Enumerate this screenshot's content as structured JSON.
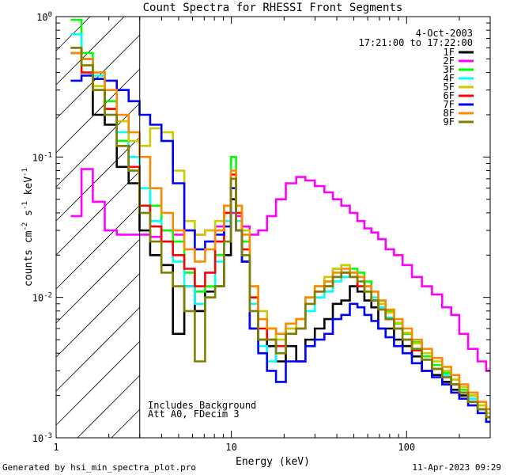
{
  "chart_data": {
    "type": "line",
    "title": "Count Spectra for RHESSI Front Segments",
    "xlabel": "Energy (keV)",
    "ylabel_parts": [
      "counts cm",
      "-2",
      " s",
      "-1",
      " keV",
      "-1"
    ],
    "xscale": "log",
    "yscale": "log",
    "xlim": [
      1,
      300
    ],
    "ylim": [
      0.001,
      1
    ],
    "x_ticks": [
      {
        "value": 1,
        "label": "1"
      },
      {
        "value": 10,
        "label": "10"
      },
      {
        "value": 100,
        "label": "100"
      }
    ],
    "y_ticks": [
      {
        "value": 1,
        "base": "10",
        "exp": "0"
      },
      {
        "value": 0.1,
        "base": "10",
        "exp": "-1"
      },
      {
        "value": 0.01,
        "base": "10",
        "exp": "-2"
      },
      {
        "value": 0.001,
        "base": "10",
        "exp": "-3"
      }
    ],
    "date": "4-Oct-2003",
    "time_range": "17:21:00 to 17:22:00",
    "excluded_region_xmax": 3,
    "annotations": [
      "Includes Background",
      "Att A0, FDecim 3"
    ],
    "series": [
      {
        "name": "1F",
        "color": "#000000",
        "x": [
          1.3,
          1.5,
          1.75,
          2.05,
          2.4,
          2.8,
          3.2,
          3.7,
          4.3,
          5.0,
          5.8,
          6.6,
          7.6,
          8.6,
          9.6,
          10.3,
          11.0,
          12.0,
          13.5,
          15,
          17,
          19,
          22,
          25,
          28,
          32,
          36,
          40,
          45,
          50,
          55,
          60,
          66,
          72,
          80,
          90,
          100,
          115,
          130,
          150,
          170,
          190,
          210,
          240,
          270,
          300
        ],
        "y": [
          0.55,
          0.5,
          0.2,
          0.17,
          0.085,
          0.065,
          0.03,
          0.02,
          0.017,
          0.0055,
          0.012,
          0.008,
          0.011,
          0.012,
          0.02,
          0.05,
          0.03,
          0.018,
          0.006,
          0.005,
          0.0045,
          0.0035,
          0.0045,
          0.0035,
          0.005,
          0.006,
          0.007,
          0.009,
          0.0095,
          0.012,
          0.011,
          0.0095,
          0.0085,
          0.006,
          0.006,
          0.005,
          0.0045,
          0.0038,
          0.003,
          0.0028,
          0.0025,
          0.0022,
          0.002,
          0.0018,
          0.0016,
          0.0014
        ]
      },
      {
        "name": "2F",
        "color": "#ff00ff",
        "x": [
          1.3,
          1.5,
          1.75,
          2.05,
          2.4,
          2.8,
          3.2,
          3.7,
          4.3,
          5.0,
          5.8,
          6.6,
          7.6,
          8.6,
          9.6,
          10.3,
          11.0,
          12.0,
          13.5,
          15,
          17,
          19,
          22,
          25,
          28,
          32,
          36,
          40,
          45,
          50,
          55,
          60,
          66,
          72,
          80,
          90,
          100,
          115,
          130,
          150,
          170,
          190,
          210,
          240,
          270,
          300
        ],
        "y": [
          0.038,
          0.082,
          0.048,
          0.03,
          0.028,
          0.028,
          0.028,
          0.027,
          0.03,
          0.028,
          0.03,
          0.028,
          0.03,
          0.032,
          0.035,
          0.04,
          0.038,
          0.032,
          0.028,
          0.03,
          0.038,
          0.05,
          0.065,
          0.072,
          0.068,
          0.062,
          0.056,
          0.05,
          0.045,
          0.04,
          0.035,
          0.031,
          0.029,
          0.026,
          0.022,
          0.02,
          0.017,
          0.014,
          0.012,
          0.0105,
          0.0085,
          0.0075,
          0.0055,
          0.0043,
          0.0035,
          0.003
        ]
      },
      {
        "name": "3F",
        "color": "#00ff00",
        "x": [
          1.3,
          1.5,
          1.75,
          2.05,
          2.4,
          2.8,
          3.2,
          3.7,
          4.3,
          5.0,
          5.8,
          6.6,
          7.6,
          8.6,
          9.6,
          10.3,
          11.0,
          12.0,
          13.5,
          15,
          17,
          19,
          22,
          25,
          28,
          32,
          36,
          40,
          45,
          50,
          55,
          60,
          66,
          72,
          80,
          90,
          100,
          115,
          130,
          150,
          170,
          190,
          210,
          240,
          270,
          300
        ],
        "y": [
          0.95,
          0.55,
          0.4,
          0.25,
          0.13,
          0.08,
          0.06,
          0.045,
          0.03,
          0.025,
          0.015,
          0.011,
          0.012,
          0.02,
          0.045,
          0.1,
          0.045,
          0.025,
          0.01,
          0.005,
          0.006,
          0.0045,
          0.006,
          0.007,
          0.01,
          0.012,
          0.013,
          0.016,
          0.017,
          0.016,
          0.015,
          0.013,
          0.011,
          0.0095,
          0.008,
          0.0065,
          0.0055,
          0.0048,
          0.0038,
          0.0033,
          0.0029,
          0.0026,
          0.0022,
          0.002,
          0.0017,
          0.0015
        ]
      },
      {
        "name": "4F",
        "color": "#00ffff",
        "x": [
          1.3,
          1.5,
          1.75,
          2.05,
          2.4,
          2.8,
          3.2,
          3.7,
          4.3,
          5.0,
          5.8,
          6.6,
          7.6,
          8.6,
          9.6,
          10.3,
          11.0,
          12.0,
          13.5,
          15,
          17,
          19,
          22,
          25,
          28,
          32,
          36,
          40,
          45,
          50,
          55,
          60,
          66,
          72,
          80,
          90,
          100,
          115,
          130,
          150,
          170,
          190,
          210,
          240,
          270,
          300
        ],
        "y": [
          0.75,
          0.5,
          0.38,
          0.2,
          0.15,
          0.1,
          0.06,
          0.035,
          0.025,
          0.018,
          0.012,
          0.009,
          0.01,
          0.018,
          0.035,
          0.08,
          0.035,
          0.02,
          0.009,
          0.0045,
          0.0035,
          0.0045,
          0.0055,
          0.006,
          0.008,
          0.01,
          0.011,
          0.013,
          0.014,
          0.014,
          0.013,
          0.011,
          0.01,
          0.0085,
          0.0072,
          0.006,
          0.005,
          0.0043,
          0.0036,
          0.0031,
          0.0028,
          0.0024,
          0.0021,
          0.0019,
          0.0016,
          0.0014
        ]
      },
      {
        "name": "5F",
        "color": "#cccc00",
        "x": [
          1.3,
          1.5,
          1.75,
          2.05,
          2.4,
          2.8,
          3.2,
          3.7,
          4.3,
          5.0,
          5.8,
          6.6,
          7.6,
          8.6,
          9.6,
          10.3,
          11.0,
          12.0,
          13.5,
          15,
          17,
          19,
          22,
          25,
          28,
          32,
          36,
          40,
          45,
          50,
          55,
          60,
          66,
          72,
          80,
          90,
          100,
          115,
          130,
          150,
          170,
          190,
          210,
          240,
          270,
          300
        ],
        "y": [
          0.6,
          0.45,
          0.32,
          0.22,
          0.18,
          0.13,
          0.12,
          0.16,
          0.15,
          0.08,
          0.035,
          0.028,
          0.03,
          0.035,
          0.04,
          0.06,
          0.04,
          0.03,
          0.012,
          0.008,
          0.006,
          0.005,
          0.006,
          0.007,
          0.01,
          0.012,
          0.014,
          0.016,
          0.017,
          0.015,
          0.014,
          0.012,
          0.011,
          0.009,
          0.0078,
          0.0066,
          0.0056,
          0.0047,
          0.004,
          0.0035,
          0.003,
          0.0026,
          0.0023,
          0.002,
          0.0017,
          0.0015
        ]
      },
      {
        "name": "6F",
        "color": "#ff0000",
        "x": [
          1.3,
          1.5,
          1.75,
          2.05,
          2.4,
          2.8,
          3.2,
          3.7,
          4.3,
          5.0,
          5.8,
          6.6,
          7.6,
          8.6,
          9.6,
          10.3,
          11.0,
          12.0,
          13.5,
          15,
          17,
          19,
          22,
          25,
          28,
          32,
          36,
          40,
          45,
          50,
          55,
          60,
          66,
          72,
          80,
          90,
          100,
          115,
          130,
          150,
          170,
          190,
          210,
          240,
          270,
          300
        ],
        "y": [
          0.6,
          0.4,
          0.3,
          0.22,
          0.12,
          0.085,
          0.045,
          0.032,
          0.025,
          0.02,
          0.016,
          0.012,
          0.015,
          0.025,
          0.04,
          0.075,
          0.04,
          0.022,
          0.01,
          0.006,
          0.005,
          0.0045,
          0.0055,
          0.006,
          0.009,
          0.011,
          0.012,
          0.014,
          0.015,
          0.014,
          0.012,
          0.011,
          0.0095,
          0.0082,
          0.007,
          0.006,
          0.005,
          0.0042,
          0.0036,
          0.0031,
          0.0027,
          0.0024,
          0.0021,
          0.0018,
          0.0016,
          0.0014
        ]
      },
      {
        "name": "7F",
        "color": "#0000ff",
        "x": [
          1.3,
          1.5,
          1.75,
          2.05,
          2.4,
          2.8,
          3.2,
          3.7,
          4.3,
          5.0,
          5.8,
          6.6,
          7.6,
          8.6,
          9.6,
          10.3,
          11.0,
          12.0,
          13.5,
          15,
          17,
          19,
          22,
          25,
          28,
          32,
          36,
          40,
          45,
          50,
          55,
          60,
          66,
          72,
          80,
          90,
          100,
          115,
          130,
          150,
          170,
          190,
          210,
          240,
          270,
          300
        ],
        "y": [
          0.35,
          0.38,
          0.36,
          0.35,
          0.3,
          0.25,
          0.2,
          0.17,
          0.13,
          0.065,
          0.03,
          0.022,
          0.025,
          0.028,
          0.032,
          0.06,
          0.03,
          0.018,
          0.006,
          0.004,
          0.003,
          0.0025,
          0.0035,
          0.0035,
          0.0045,
          0.005,
          0.0055,
          0.007,
          0.0075,
          0.009,
          0.0085,
          0.0075,
          0.0068,
          0.006,
          0.0052,
          0.0045,
          0.004,
          0.0034,
          0.003,
          0.0027,
          0.0024,
          0.0021,
          0.0019,
          0.0017,
          0.0015,
          0.0013
        ]
      },
      {
        "name": "8F",
        "color": "#ff8800",
        "x": [
          1.3,
          1.5,
          1.75,
          2.05,
          2.4,
          2.8,
          3.2,
          3.7,
          4.3,
          5.0,
          5.8,
          6.6,
          7.6,
          8.6,
          9.6,
          10.3,
          11.0,
          12.0,
          13.5,
          15,
          17,
          19,
          22,
          25,
          28,
          32,
          36,
          40,
          45,
          50,
          55,
          60,
          66,
          72,
          80,
          90,
          100,
          115,
          130,
          150,
          170,
          190,
          210,
          240,
          270,
          300
        ],
        "y": [
          0.55,
          0.5,
          0.4,
          0.3,
          0.2,
          0.15,
          0.1,
          0.06,
          0.04,
          0.03,
          0.022,
          0.018,
          0.022,
          0.03,
          0.045,
          0.08,
          0.045,
          0.028,
          0.012,
          0.007,
          0.006,
          0.0055,
          0.0065,
          0.007,
          0.01,
          0.012,
          0.013,
          0.015,
          0.016,
          0.015,
          0.014,
          0.012,
          0.011,
          0.0095,
          0.0082,
          0.007,
          0.006,
          0.005,
          0.0043,
          0.0037,
          0.0032,
          0.0028,
          0.0024,
          0.0021,
          0.0018,
          0.0016
        ]
      },
      {
        "name": "9F",
        "color": "#808000",
        "x": [
          1.3,
          1.5,
          1.75,
          2.05,
          2.4,
          2.8,
          3.2,
          3.7,
          4.3,
          5.0,
          5.8,
          6.6,
          7.6,
          8.6,
          9.6,
          10.3,
          11.0,
          12.0,
          13.5,
          15,
          17,
          19,
          22,
          25,
          28,
          32,
          36,
          40,
          45,
          50,
          55,
          60,
          66,
          72,
          80,
          90,
          100,
          115,
          130,
          150,
          170,
          190,
          210,
          240,
          270,
          300
        ],
        "y": [
          0.6,
          0.45,
          0.3,
          0.2,
          0.12,
          0.08,
          0.04,
          0.025,
          0.015,
          0.012,
          0.008,
          0.0035,
          0.01,
          0.012,
          0.025,
          0.07,
          0.03,
          0.02,
          0.008,
          0.005,
          0.005,
          0.004,
          0.0055,
          0.006,
          0.009,
          0.011,
          0.012,
          0.014,
          0.015,
          0.014,
          0.013,
          0.011,
          0.0095,
          0.0082,
          0.007,
          0.006,
          0.005,
          0.0043,
          0.0036,
          0.0031,
          0.0027,
          0.0024,
          0.0021,
          0.0018,
          0.0016,
          0.0014
        ]
      }
    ]
  },
  "footer": {
    "generated_by": "Generated by hsi_min_spectra_plot.pro",
    "timestamp": "11-Apr-2023 09:29"
  }
}
